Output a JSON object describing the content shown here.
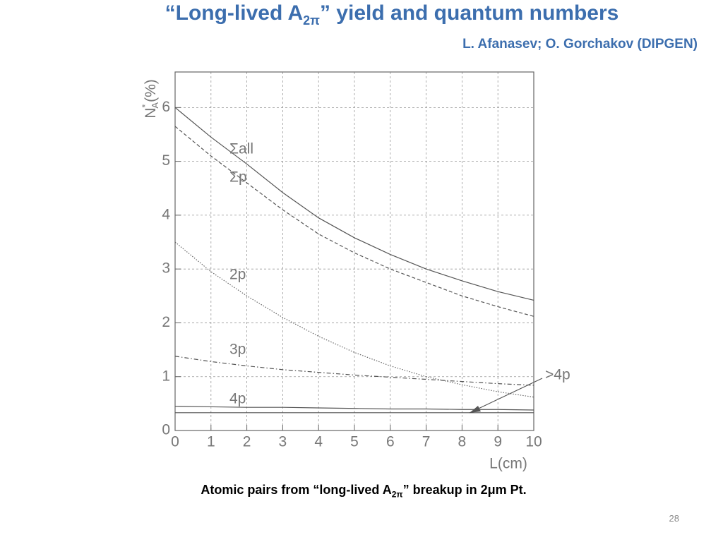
{
  "slide": {
    "title": [
      "“Long-lived A",
      "2π",
      "” yield and quantum numbers"
    ],
    "authors": "L. Afanasev; O. Gorchakov (DIPGEN)",
    "caption": [
      "Atomic pairs from “long-lived A",
      "2π",
      "” breakup in 2μm Pt."
    ],
    "page_number": "28"
  },
  "chart_data": {
    "type": "line",
    "ylabel": {
      "base": "N",
      "sup": "*",
      "sub": "A",
      "unit": "(%)"
    },
    "xlabel": "L(cm)",
    "x": [
      0,
      1,
      2,
      3,
      4,
      5,
      6,
      7,
      8,
      9,
      10
    ],
    "xlim": [
      0,
      10
    ],
    "xticks": [
      0,
      1,
      2,
      3,
      4,
      5,
      6,
      7,
      8,
      9,
      10
    ],
    "ylim": [
      0,
      6.66
    ],
    "yticks": [
      0,
      1,
      2,
      3,
      4,
      5,
      6
    ],
    "grid": true,
    "series": [
      {
        "name": "Σall",
        "color": "#555555",
        "style": "solid",
        "values": [
          6.0,
          5.45,
          4.95,
          4.42,
          3.95,
          3.58,
          3.27,
          3.0,
          2.78,
          2.58,
          2.42
        ]
      },
      {
        "name": "Σp",
        "color": "#555555",
        "style": "dashed",
        "values": [
          5.65,
          5.1,
          4.6,
          4.1,
          3.65,
          3.3,
          3.0,
          2.75,
          2.5,
          2.3,
          2.12
        ]
      },
      {
        "name": "2p",
        "color": "#666666",
        "style": "dotted",
        "values": [
          3.5,
          2.95,
          2.5,
          2.1,
          1.75,
          1.45,
          1.2,
          1.0,
          0.85,
          0.72,
          0.62
        ]
      },
      {
        "name": "3p",
        "color": "#555555",
        "style": "dashdot",
        "values": [
          1.38,
          1.28,
          1.2,
          1.13,
          1.08,
          1.03,
          0.99,
          0.95,
          0.91,
          0.87,
          0.84
        ]
      },
      {
        "name": "4p",
        "color": "#555555",
        "style": "solid",
        "values": [
          0.45,
          0.44,
          0.43,
          0.43,
          0.42,
          0.41,
          0.4,
          0.4,
          0.39,
          0.39,
          0.38
        ]
      },
      {
        "name": ">4p",
        "color": "#555555",
        "style": "solid",
        "values": [
          0.33,
          0.33,
          0.33,
          0.33,
          0.33,
          0.33,
          0.33,
          0.33,
          0.33,
          0.33,
          0.33
        ]
      }
    ]
  }
}
